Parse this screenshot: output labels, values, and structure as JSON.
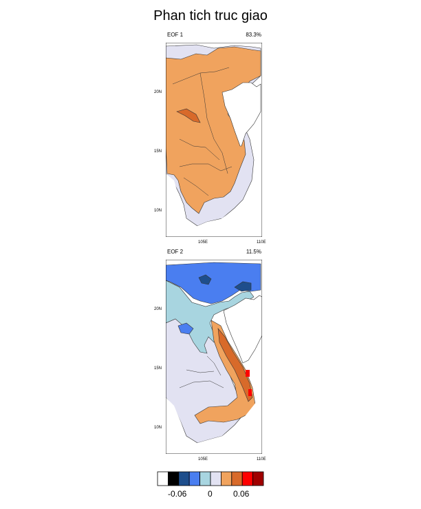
{
  "title": "Phan tich truc giao",
  "panels": [
    {
      "label": "EOF 1",
      "percent": "83.3%"
    },
    {
      "label": "EOF 2",
      "percent": "11.5%"
    }
  ],
  "lat_ticks": [
    "20N",
    "15N",
    "10N"
  ],
  "lon_ticks": [
    "105E",
    "110E"
  ],
  "colorbar": {
    "labels": [
      "-0.06",
      "0",
      "0.06"
    ],
    "colors": [
      "#ffffff",
      "#000000",
      "#1e4e8c",
      "#4a7ef0",
      "#a8d5e0",
      "#e2e2f2",
      "#f0a35e",
      "#d86a2a",
      "#ff0000",
      "#a00000"
    ]
  },
  "palette": {
    "land_orange": "#f0a35e",
    "dark_orange": "#d86a2a",
    "lavender": "#e2e2f2",
    "light_blue": "#a8d5e0",
    "blue": "#4a7ef0",
    "navy": "#1e4e8c",
    "red": "#ff0000"
  }
}
